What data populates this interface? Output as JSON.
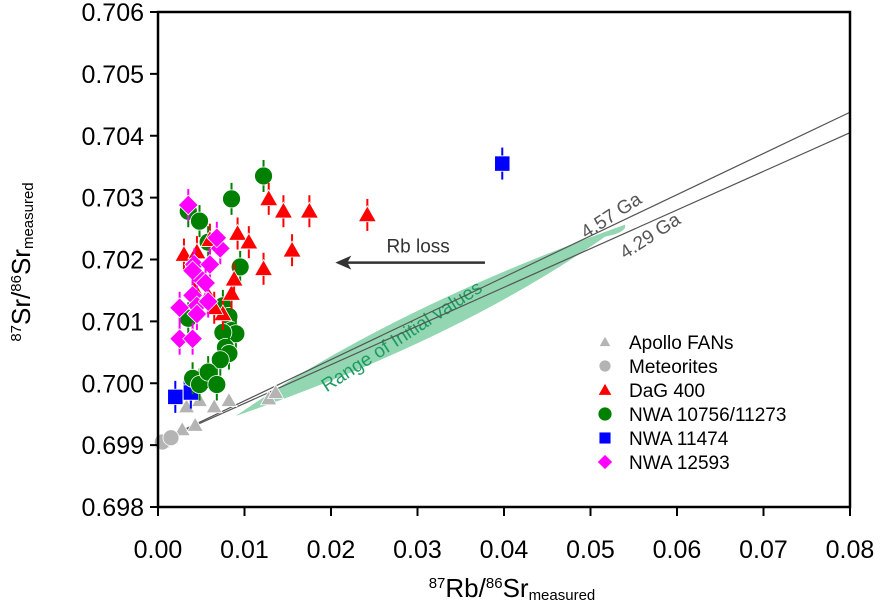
{
  "chart_data": {
    "type": "scatter",
    "title": "",
    "xlabel": {
      "sup1": "87",
      "main1": "Rb/",
      "sup2": "86",
      "main2": "Sr",
      "sub": "measured"
    },
    "ylabel": {
      "sup1": "87",
      "main1": "Sr/",
      "sup2": "86",
      "main2": "Sr",
      "sub": "measured"
    },
    "xlim": [
      0,
      0.08
    ],
    "ylim": [
      0.698,
      0.706
    ],
    "xticks": [
      "0.00",
      "0.01",
      "0.02",
      "0.03",
      "0.04",
      "0.05",
      "0.06",
      "0.07",
      "0.08"
    ],
    "yticks": [
      "0.698",
      "0.699",
      "0.700",
      "0.701",
      "0.702",
      "0.703",
      "0.704",
      "0.705",
      "0.706"
    ],
    "grid": false,
    "legend_position": "bottom-right",
    "series": [
      {
        "name": "Apollo FANs",
        "marker": "triangle",
        "color": "#b4b4b4",
        "points": [
          [
            0.0005,
            0.69905
          ],
          [
            0.0015,
            0.69912
          ],
          [
            0.0028,
            0.69925
          ],
          [
            0.0043,
            0.69932
          ],
          [
            0.0033,
            0.69962
          ],
          [
            0.0048,
            0.69972
          ],
          [
            0.0065,
            0.69962
          ],
          [
            0.0082,
            0.69972
          ],
          [
            0.0128,
            0.69975
          ],
          [
            0.0136,
            0.69985
          ]
        ]
      },
      {
        "name": "Meteorites",
        "marker": "circle",
        "color": "#b4b4b4",
        "points": [
          [
            0.0005,
            0.69905
          ],
          [
            0.0015,
            0.69912
          ]
        ]
      },
      {
        "name": "DaG 400",
        "marker": "triangle",
        "color": "#ff0000",
        "points": [
          [
            0.003,
            0.70208
          ],
          [
            0.0042,
            0.70152
          ],
          [
            0.0058,
            0.70142
          ],
          [
            0.006,
            0.70232
          ],
          [
            0.0075,
            0.70112
          ],
          [
            0.0085,
            0.70145
          ],
          [
            0.0088,
            0.70168
          ],
          [
            0.0092,
            0.70242
          ],
          [
            0.0105,
            0.70228
          ],
          [
            0.0122,
            0.70185
          ],
          [
            0.0128,
            0.70298
          ],
          [
            0.0145,
            0.70278
          ],
          [
            0.0155,
            0.70215
          ],
          [
            0.0175,
            0.70278
          ],
          [
            0.0242,
            0.70272
          ],
          [
            0.0045,
            0.70212
          ],
          [
            0.0065,
            0.70122
          ]
        ]
      },
      {
        "name": "NWA 10756/11273",
        "marker": "circle",
        "color": "#008000",
        "points": [
          [
            0.0035,
            0.70278
          ],
          [
            0.0048,
            0.70262
          ],
          [
            0.0058,
            0.70228
          ],
          [
            0.0085,
            0.70298
          ],
          [
            0.0122,
            0.70335
          ],
          [
            0.0095,
            0.70188
          ],
          [
            0.0035,
            0.70105
          ],
          [
            0.0075,
            0.70125
          ],
          [
            0.0082,
            0.70108
          ],
          [
            0.0085,
            0.70085
          ],
          [
            0.009,
            0.7008
          ],
          [
            0.0075,
            0.70082
          ],
          [
            0.0078,
            0.70058
          ],
          [
            0.0082,
            0.70048
          ],
          [
            0.0072,
            0.70038
          ],
          [
            0.004,
            0.70008
          ],
          [
            0.0048,
            0.69998
          ],
          [
            0.0058,
            0.70018
          ],
          [
            0.0068,
            0.69998
          ]
        ]
      },
      {
        "name": "NWA 11474",
        "marker": "square",
        "color": "#0000ff",
        "points": [
          [
            0.002,
            0.69978
          ],
          [
            0.0038,
            0.69995
          ],
          [
            0.0038,
            0.69985
          ],
          [
            0.0398,
            0.70355
          ]
        ]
      },
      {
        "name": "NWA 12593",
        "marker": "diamond",
        "color": "#ff00ff",
        "points": [
          [
            0.0035,
            0.70288
          ],
          [
            0.0042,
            0.70192
          ],
          [
            0.0045,
            0.70175
          ],
          [
            0.0072,
            0.70218
          ],
          [
            0.0068,
            0.70235
          ],
          [
            0.004,
            0.70182
          ],
          [
            0.006,
            0.70192
          ],
          [
            0.0055,
            0.70162
          ],
          [
            0.004,
            0.70142
          ],
          [
            0.0045,
            0.70125
          ],
          [
            0.0058,
            0.70132
          ],
          [
            0.0025,
            0.70122
          ],
          [
            0.0045,
            0.70112
          ],
          [
            0.0025,
            0.70072
          ],
          [
            0.004,
            0.70072
          ]
        ]
      }
    ],
    "reference_lines": [
      {
        "label": "4.57 Ga",
        "from": [
          0,
          0.69905
        ],
        "to": [
          0.08,
          0.70438
        ]
      },
      {
        "label": "4.29 Ga",
        "from": [
          0,
          0.69905
        ],
        "to": [
          0.08,
          0.70405
        ]
      }
    ],
    "annotations": [
      {
        "text": "Rb loss",
        "type": "arrow",
        "arrow_from": [
          0.0378,
          0.70195
        ],
        "arrow_to": [
          0.0205,
          0.70195
        ]
      },
      {
        "text": "Range of Initial values",
        "type": "shaded-region",
        "color": "#7fcfa5",
        "text_color": "#1f9a63",
        "x_range": [
          0.009,
          0.054
        ],
        "y_range": [
          0.6996,
          0.7025
        ]
      }
    ]
  }
}
